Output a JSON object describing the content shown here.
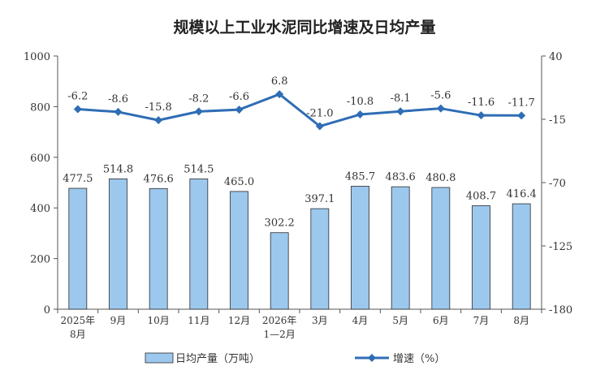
{
  "chart_data": {
    "type": "bar",
    "title": "规模以上工业水泥同比增速及日均产量",
    "categories": [
      [
        "2025年",
        "8月"
      ],
      [
        "9月"
      ],
      [
        "10月"
      ],
      [
        "11月"
      ],
      [
        "12月"
      ],
      [
        "2026年",
        "1—2月"
      ],
      [
        "3月"
      ],
      [
        "4月"
      ],
      [
        "5月"
      ],
      [
        "6月"
      ],
      [
        "7月"
      ],
      [
        "8月"
      ]
    ],
    "series": [
      {
        "name": "日均产量（万吨）",
        "type": "bar",
        "axis": "left",
        "values": [
          477.5,
          514.8,
          476.6,
          514.5,
          465.0,
          302.2,
          397.1,
          485.7,
          483.6,
          480.8,
          408.7,
          416.4
        ],
        "labels": [
          "477.5",
          "514.8",
          "476.6",
          "514.5",
          "465.0",
          "302.2",
          "397.1",
          "485.7",
          "483.6",
          "480.8",
          "408.7",
          "416.4"
        ]
      },
      {
        "name": "增速（%）",
        "type": "line",
        "axis": "right",
        "values": [
          -6.2,
          -8.6,
          -15.8,
          -8.2,
          -6.6,
          6.8,
          -21.0,
          -10.8,
          -8.1,
          -5.6,
          -11.6,
          -11.7
        ],
        "labels": [
          "-6.2",
          "-8.6",
          "-15.8",
          "-8.2",
          "-6.6",
          "6.8",
          "-21.0",
          "-10.8",
          "-8.1",
          "-5.6",
          "-11.6",
          "-11.7"
        ]
      }
    ],
    "y_left": {
      "min": 0,
      "max": 1000,
      "ticks": [
        0,
        200,
        400,
        600,
        800,
        1000
      ]
    },
    "y_right": {
      "min": -180,
      "max": 40,
      "ticks": [
        -180,
        -125,
        -70,
        -15,
        40
      ]
    },
    "grid": false,
    "legend_position": "bottom",
    "colors": {
      "bar_fill": "#9cc8ee",
      "bar_stroke": "#2b2b2b",
      "line": "#2f6db5",
      "axis": "#555555"
    }
  }
}
